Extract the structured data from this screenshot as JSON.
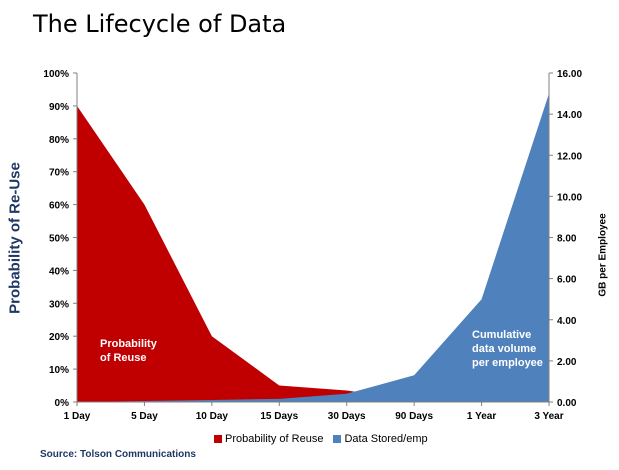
{
  "chart_data": {
    "type": "area",
    "title": "The Lifecycle of Data",
    "categories": [
      "1 Day",
      "5 Day",
      "10 Day",
      "15 Days",
      "30 Days",
      "90 Days",
      "1 Year",
      "3 Year"
    ],
    "series": [
      {
        "name": "Probability of Reuse",
        "axis": "left",
        "values": [
          90,
          60,
          20,
          5,
          3.5,
          0.5,
          0,
          0
        ],
        "color": "#c00000"
      },
      {
        "name": "Data Stored/emp",
        "axis": "right",
        "values": [
          0,
          0.05,
          0.1,
          0.15,
          0.4,
          1.3,
          5.0,
          15.0
        ],
        "color": "#4f81bd"
      }
    ],
    "y_left": {
      "label": "Probability  of Re-Use",
      "min": 0,
      "max": 100,
      "ticks": [
        "0%",
        "10%",
        "20%",
        "30%",
        "40%",
        "50%",
        "60%",
        "70%",
        "80%",
        "90%",
        "100%"
      ]
    },
    "y_right": {
      "label": "GB per Employee",
      "min": 0,
      "max": 16,
      "ticks": [
        "0.00",
        "2.00",
        "4.00",
        "6.00",
        "8.00",
        "10.00",
        "12.00",
        "14.00",
        "16.00"
      ]
    },
    "annotations": [
      {
        "lines": [
          "Probability",
          "of Reuse"
        ],
        "series": "left"
      },
      {
        "lines": [
          "Cumulative",
          "data volume",
          "per employee"
        ],
        "series": "right"
      }
    ],
    "legend": "bottom",
    "grid": false,
    "source": "Source: Tolson Communications"
  }
}
